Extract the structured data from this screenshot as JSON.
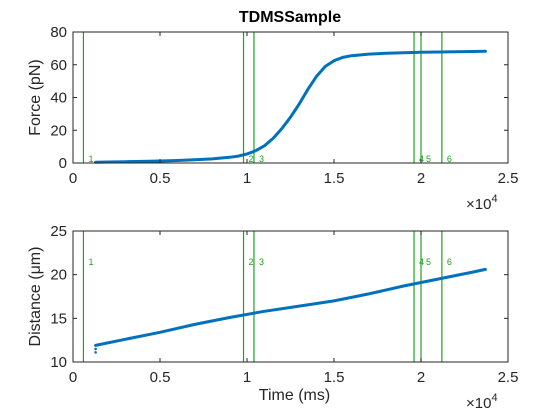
{
  "chart_data": [
    {
      "type": "line",
      "title": "TDMSSample",
      "xlabel": "",
      "ylabel": "Force (pN)",
      "xlim": [
        0,
        25000
      ],
      "ylim": [
        0,
        80
      ],
      "x_ticks": [
        0,
        5000,
        10000,
        15000,
        20000,
        25000
      ],
      "x_tick_labels": [
        "0",
        "0.5",
        "1",
        "1.5",
        "2",
        "2.5"
      ],
      "y_ticks": [
        0,
        20,
        40,
        60,
        80
      ],
      "y_tick_labels": [
        "0",
        "20",
        "40",
        "60",
        "80"
      ],
      "x_multiplier_base": "×10",
      "x_multiplier_exp": "4",
      "grid": false,
      "series": [
        {
          "color": "#0072bd",
          "x": [
            1300,
            2000,
            3000,
            4000,
            5000,
            6000,
            7000,
            8000,
            9000,
            9500,
            10000,
            10500,
            11000,
            11500,
            12000,
            12500,
            13000,
            13500,
            14000,
            14500,
            15000,
            15500,
            16000,
            17000,
            18000,
            19000,
            20000,
            21000,
            22000,
            23000,
            23700
          ],
          "y": [
            0.5,
            0.6,
            0.8,
            1.0,
            1.2,
            1.5,
            2.0,
            2.5,
            3.5,
            4.2,
            5.5,
            7.5,
            10.5,
            15.0,
            21.0,
            28.0,
            36.0,
            45.0,
            53.0,
            59.0,
            62.5,
            64.5,
            65.5,
            66.5,
            67.0,
            67.3,
            67.6,
            67.8,
            68.0,
            68.1,
            68.2
          ]
        }
      ],
      "markers": [
        {
          "x": 600,
          "label": "1"
        },
        {
          "x": 9800,
          "label": "2"
        },
        {
          "x": 10400,
          "label": "3"
        },
        {
          "x": 19600,
          "label": "4"
        },
        {
          "x": 20000,
          "label": "5"
        },
        {
          "x": 21200,
          "label": "6"
        }
      ]
    },
    {
      "type": "line",
      "title": "",
      "xlabel": "Time (ms)",
      "ylabel": "Distance (μm)",
      "xlim": [
        0,
        25000
      ],
      "ylim": [
        10,
        25
      ],
      "x_ticks": [
        0,
        5000,
        10000,
        15000,
        20000,
        25000
      ],
      "x_tick_labels": [
        "0",
        "0.5",
        "1",
        "1.5",
        "2",
        "2.5"
      ],
      "y_ticks": [
        10,
        15,
        20,
        25
      ],
      "y_tick_labels": [
        "10",
        "15",
        "20",
        "25"
      ],
      "x_multiplier_base": "×10",
      "x_multiplier_exp": "4",
      "grid": false,
      "series": [
        {
          "color": "#0072bd",
          "x": [
            1300,
            3000,
            5000,
            7000,
            9000,
            11000,
            13000,
            15000,
            17000,
            19000,
            21000,
            23000,
            23700
          ],
          "y": [
            11.9,
            12.6,
            13.4,
            14.3,
            15.1,
            15.8,
            16.4,
            17.0,
            17.8,
            18.7,
            19.5,
            20.3,
            20.6
          ]
        }
      ],
      "outliers": [
        {
          "x": 1300,
          "y": 11.5
        },
        {
          "x": 1300,
          "y": 11.1
        }
      ],
      "markers": [
        {
          "x": 600,
          "label": "1"
        },
        {
          "x": 9800,
          "label": "2"
        },
        {
          "x": 10400,
          "label": "3"
        },
        {
          "x": 19600,
          "label": "4"
        },
        {
          "x": 20000,
          "label": "5"
        },
        {
          "x": 21200,
          "label": "6"
        }
      ]
    }
  ]
}
